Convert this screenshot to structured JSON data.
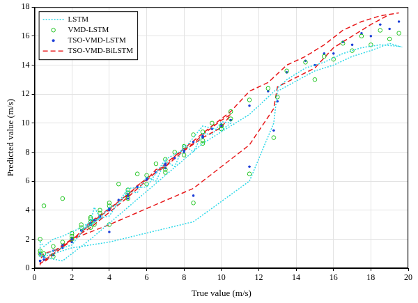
{
  "chart_data": {
    "type": "scatter",
    "x_label": "True value (m/s)",
    "y_label": "Predicted value (m/s)",
    "xlim": [
      0,
      20
    ],
    "xticks": [
      0,
      2,
      4,
      6,
      8,
      10,
      12,
      14,
      16,
      18,
      20
    ],
    "ylim": [
      0,
      18
    ],
    "yticks": [
      0,
      2,
      4,
      6,
      8,
      10,
      12,
      14,
      16,
      18
    ],
    "grid": true,
    "legend": "upper left",
    "x": [
      0.3,
      0.3,
      0.5,
      1.0,
      1.5,
      2.0,
      2.5,
      3.0,
      3.2,
      3.5,
      3.0,
      2.5,
      3.5,
      4.0,
      4.5,
      5.0,
      5.5,
      6.0,
      6.5,
      7.0,
      7.5,
      8.0,
      8.5,
      9.0,
      9.5,
      10.0,
      10.5,
      10.0,
      9.0,
      8.0,
      7.0,
      6.0,
      5.0,
      4.0,
      3.0,
      2.0,
      1.0,
      0.3,
      1.5,
      3.0,
      5.0,
      7.0,
      9.0,
      10.5,
      11.5,
      12.5,
      13.5,
      14.5,
      15.5,
      16.5,
      17.5,
      18.5,
      19.5,
      19.0,
      18.0,
      17.0,
      16.0,
      15.0,
      13.0,
      12.8,
      11.5,
      8.5,
      4.0,
      2.0,
      0.5
    ],
    "series": [
      {
        "name": "LSTM",
        "color": "#2ed8e8",
        "line_style": "dotted",
        "marker": "none",
        "values": [
          1.0,
          1.8,
          1.5,
          2.0,
          2.2,
          2.5,
          2.8,
          3.2,
          4.2,
          3.5,
          3.0,
          2.6,
          3.4,
          4.2,
          4.4,
          5.3,
          5.2,
          6.3,
          6.0,
          7.4,
          7.0,
          8.5,
          8.0,
          9.3,
          9.2,
          10.1,
          10.0,
          9.5,
          9.8,
          8.2,
          7.5,
          5.6,
          5.5,
          3.6,
          3.3,
          1.6,
          1.2,
          0.8,
          0.5,
          2.0,
          4.2,
          6.4,
          8.6,
          9.8,
          10.6,
          11.8,
          13.0,
          13.8,
          14.2,
          14.8,
          15.2,
          15.4,
          15.3,
          15.5,
          15.0,
          14.6,
          14.0,
          13.6,
          12.2,
          10.0,
          6.0,
          3.2,
          1.8,
          1.4,
          0.8
        ]
      },
      {
        "name": "VMD-LSTM",
        "color": "#1fc41f",
        "line_style": "none",
        "marker": "circle",
        "values": [
          1.2,
          2.0,
          4.3,
          1.5,
          4.8,
          2.0,
          3.0,
          3.5,
          3.0,
          3.8,
          3.2,
          2.8,
          4.0,
          4.5,
          5.8,
          5.2,
          6.5,
          5.8,
          7.2,
          6.8,
          8.0,
          7.8,
          9.2,
          8.8,
          10.0,
          9.6,
          10.3,
          9.8,
          8.6,
          8.4,
          6.6,
          6.4,
          4.8,
          4.3,
          2.8,
          2.4,
          0.8,
          1.0,
          1.8,
          3.4,
          5.4,
          7.5,
          9.4,
          10.8,
          11.6,
          12.4,
          13.6,
          14.2,
          14.6,
          15.5,
          16.0,
          16.4,
          16.2,
          15.8,
          15.4,
          15.0,
          14.4,
          13.0,
          11.8,
          9.0,
          6.5,
          4.5,
          3.0,
          2.2,
          1.0
        ]
      },
      {
        "name": "TSO-VMD-LSTM",
        "color": "#1e3fd8",
        "line_style": "none",
        "marker": "dot",
        "values": [
          0.5,
          1.0,
          0.8,
          1.2,
          1.6,
          2.1,
          2.6,
          3.0,
          3.3,
          3.6,
          3.1,
          2.6,
          3.5,
          4.1,
          4.7,
          5.1,
          5.6,
          6.2,
          6.6,
          7.1,
          7.6,
          8.1,
          8.7,
          9.0,
          9.6,
          9.8,
          10.2,
          9.9,
          9.1,
          8.0,
          7.2,
          6.1,
          5.0,
          4.0,
          3.0,
          2.0,
          0.9,
          0.5,
          1.4,
          3.0,
          4.8,
          6.9,
          9.1,
          10.2,
          11.2,
          12.2,
          13.5,
          14.3,
          14.8,
          15.6,
          16.2,
          16.8,
          17.0,
          16.5,
          16.0,
          15.4,
          14.8,
          14.0,
          11.5,
          9.5,
          7.0,
          5.0,
          2.5,
          1.8,
          0.6
        ]
      },
      {
        "name": "TSO-VMD-BiLSTM",
        "color": "#e8191b",
        "line_style": "dashed",
        "marker": "none",
        "values": [
          0.2,
          0.6,
          1.0,
          1.2,
          1.5,
          2.0,
          2.4,
          3.1,
          3.4,
          3.5,
          3.0,
          2.5,
          3.6,
          4.0,
          4.6,
          5.0,
          5.7,
          6.1,
          6.8,
          7.0,
          7.7,
          8.2,
          8.6,
          9.2,
          9.7,
          10.2,
          10.6,
          9.7,
          9.0,
          8.1,
          7.0,
          6.2,
          5.1,
          4.1,
          3.2,
          1.9,
          1.0,
          0.3,
          1.6,
          2.8,
          4.9,
          7.2,
          9.3,
          10.8,
          12.2,
          12.8,
          14.0,
          14.6,
          15.4,
          16.4,
          17.0,
          17.4,
          17.6,
          17.5,
          16.8,
          16.0,
          15.2,
          13.8,
          12.5,
          11.0,
          8.5,
          5.5,
          3.0,
          2.0,
          0.4
        ]
      }
    ]
  }
}
